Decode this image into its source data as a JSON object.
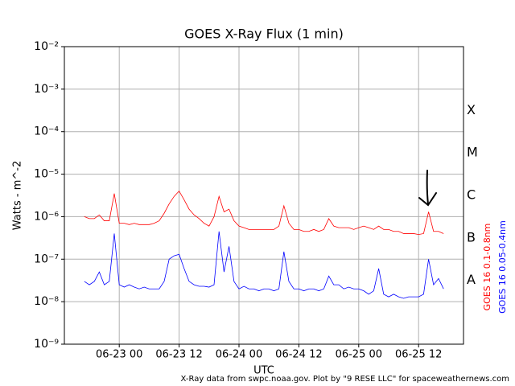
{
  "chart_data": {
    "type": "line",
    "title": "GOES X-Ray Flux (1 min)",
    "xlabel": "UTC",
    "ylabel": "Watts - m^-2",
    "footer": "X-Ray data from swpc.noaa.gov. Plot by \"9 RESE LLC\" for spaceweathernews.com",
    "log_y": true,
    "grid": true,
    "legend": "right",
    "x": [
      "06-22 17",
      "06-22 18",
      "06-22 19",
      "06-22 20",
      "06-22 21",
      "06-22 22",
      "06-22 23",
      "06-23 00",
      "06-23 01",
      "06-23 02",
      "06-23 03",
      "06-23 04",
      "06-23 05",
      "06-23 06",
      "06-23 07",
      "06-23 08",
      "06-23 09",
      "06-23 10",
      "06-23 11",
      "06-23 12",
      "06-23 13",
      "06-23 14",
      "06-23 15",
      "06-23 16",
      "06-23 17",
      "06-23 18",
      "06-23 19",
      "06-23 20",
      "06-23 21",
      "06-23 22",
      "06-23 23",
      "06-24 00",
      "06-24 01",
      "06-24 02",
      "06-24 03",
      "06-24 04",
      "06-24 05",
      "06-24 06",
      "06-24 07",
      "06-24 08",
      "06-24 09",
      "06-24 10",
      "06-24 11",
      "06-24 12",
      "06-24 13",
      "06-24 14",
      "06-24 15",
      "06-24 16",
      "06-24 17",
      "06-24 18",
      "06-24 19",
      "06-24 20",
      "06-24 21",
      "06-24 22",
      "06-24 23",
      "06-25 00",
      "06-25 01",
      "06-25 02",
      "06-25 03",
      "06-25 04",
      "06-25 05",
      "06-25 06",
      "06-25 07",
      "06-25 08",
      "06-25 09",
      "06-25 10",
      "06-25 11",
      "06-25 12",
      "06-25 13",
      "06-25 14",
      "06-25 15",
      "06-25 16",
      "06-25 17"
    ],
    "series": [
      {
        "name": "GOES 16 0.1-0.8nm",
        "color": "#ff0000",
        "values": [
          1e-06,
          9e-07,
          9e-07,
          1.1e-06,
          8e-07,
          8e-07,
          3.5e-06,
          7e-07,
          7e-07,
          6.5e-07,
          7e-07,
          6.5e-07,
          6.5e-07,
          6.5e-07,
          7e-07,
          8e-07,
          1.2e-06,
          2e-06,
          3e-06,
          4e-06,
          2.5e-06,
          1.5e-06,
          1.1e-06,
          9e-07,
          7e-07,
          6e-07,
          1e-06,
          3e-06,
          1.3e-06,
          1.5e-06,
          8e-07,
          6e-07,
          5.5e-07,
          5e-07,
          5e-07,
          5e-07,
          5e-07,
          5e-07,
          5e-07,
          6e-07,
          1.8e-06,
          7e-07,
          5e-07,
          5e-07,
          4.5e-07,
          4.5e-07,
          5e-07,
          4.5e-07,
          5e-07,
          9e-07,
          6e-07,
          5.5e-07,
          5.5e-07,
          5.5e-07,
          5e-07,
          5.5e-07,
          6e-07,
          5.5e-07,
          5e-07,
          6e-07,
          5e-07,
          5e-07,
          4.5e-07,
          4.5e-07,
          4e-07,
          4e-07,
          4e-07,
          3.8e-07,
          4e-07,
          1.3e-06,
          4.5e-07,
          4.5e-07,
          4e-07
        ]
      },
      {
        "name": "GOES 16 0.05-0.4nm",
        "color": "#0000ff",
        "values": [
          3e-08,
          2.5e-08,
          3e-08,
          5e-08,
          2.5e-08,
          3e-08,
          4e-07,
          2.5e-08,
          2.2e-08,
          2.5e-08,
          2.2e-08,
          2e-08,
          2.2e-08,
          2e-08,
          2e-08,
          2e-08,
          3e-08,
          1e-07,
          1.2e-07,
          1.3e-07,
          6e-08,
          3e-08,
          2.5e-08,
          2.3e-08,
          2.3e-08,
          2.2e-08,
          2.5e-08,
          4.5e-07,
          5e-08,
          2e-07,
          3e-08,
          2e-08,
          2.3e-08,
          2e-08,
          2e-08,
          1.8e-08,
          2e-08,
          2e-08,
          1.8e-08,
          2e-08,
          1.5e-07,
          3e-08,
          2e-08,
          2e-08,
          1.8e-08,
          2e-08,
          2e-08,
          1.8e-08,
          2e-08,
          4e-08,
          2.5e-08,
          2.5e-08,
          2e-08,
          2.2e-08,
          2e-08,
          2e-08,
          1.8e-08,
          1.5e-08,
          1.8e-08,
          6e-08,
          1.5e-08,
          1.3e-08,
          1.5e-08,
          1.3e-08,
          1.2e-08,
          1.3e-08,
          1.3e-08,
          1.3e-08,
          1.5e-08,
          1e-07,
          2.5e-08,
          3.5e-08,
          2e-08
        ]
      }
    ],
    "xlim": [
      "06-22 13",
      "06-25 21"
    ],
    "xticks": [
      "06-23 00",
      "06-23 12",
      "06-24 00",
      "06-24 12",
      "06-25 00",
      "06-25 12"
    ],
    "ylim": [
      1e-09,
      0.01
    ],
    "yticks": [
      {
        "value": 1e-09,
        "label": "10⁻⁹"
      },
      {
        "value": 1e-08,
        "label": "10⁻⁸"
      },
      {
        "value": 1e-07,
        "label": "10⁻⁷"
      },
      {
        "value": 1e-06,
        "label": "10⁻⁶"
      },
      {
        "value": 1e-05,
        "label": "10⁻⁵"
      },
      {
        "value": 0.0001,
        "label": "10⁻⁴"
      },
      {
        "value": 0.001,
        "label": "10⁻³"
      },
      {
        "value": 0.01,
        "label": "10⁻²"
      }
    ],
    "flare_classes": [
      {
        "label": "A",
        "value": 1e-08
      },
      {
        "label": "B",
        "value": 1e-07
      },
      {
        "label": "C",
        "value": 1e-06
      },
      {
        "label": "M",
        "value": 1e-05
      },
      {
        "label": "X",
        "value": 0.0001
      }
    ]
  }
}
